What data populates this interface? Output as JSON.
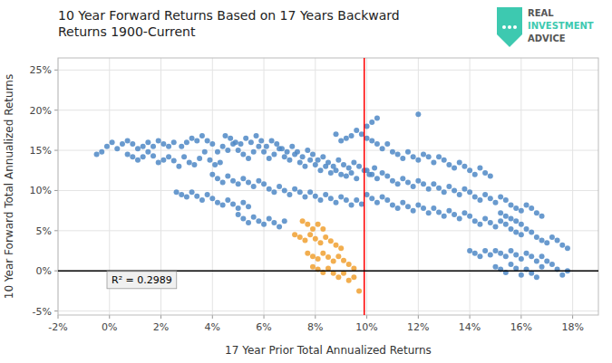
{
  "chart_data": {
    "type": "scatter",
    "title": "10 Year Forward Returns Based on 17 Years Backward\nReturns 1900-Current",
    "x_label": "17 Year Prior Total Annualized Returns",
    "y_label": "10 Year Forward Total Annualized Returns",
    "xlim": [
      -0.02,
      0.19
    ],
    "ylim": [
      -0.055,
      0.265
    ],
    "xticks": [
      {
        "value": -0.02,
        "label": "-2%"
      },
      {
        "value": 0.0,
        "label": "0%"
      },
      {
        "value": 0.02,
        "label": "2%"
      },
      {
        "value": 0.04,
        "label": "4%"
      },
      {
        "value": 0.06,
        "label": "6%"
      },
      {
        "value": 0.08,
        "label": "8%"
      },
      {
        "value": 0.1,
        "label": "10%"
      },
      {
        "value": 0.12,
        "label": "12%"
      },
      {
        "value": 0.14,
        "label": "14%"
      },
      {
        "value": 0.16,
        "label": "16%"
      },
      {
        "value": 0.18,
        "label": "18%"
      }
    ],
    "yticks": [
      {
        "value": -0.05,
        "label": "-5%"
      },
      {
        "value": 0.0,
        "label": "0%"
      },
      {
        "value": 0.05,
        "label": "5%"
      },
      {
        "value": 0.1,
        "label": "10%"
      },
      {
        "value": 0.15,
        "label": "15%"
      },
      {
        "value": 0.2,
        "label": "20%"
      },
      {
        "value": 0.25,
        "label": "25%"
      }
    ],
    "grid": true,
    "reference_lines": [
      {
        "axis": "x",
        "value": 0.099,
        "color": "red"
      },
      {
        "axis": "y",
        "value": 0.0,
        "color": "black"
      }
    ],
    "annotations": [
      {
        "text": "R² = 0.2989"
      }
    ],
    "logo_text": [
      "REAL",
      "INVESTMENT",
      "ADVICE"
    ],
    "logo_color": "#3dc9b0",
    "series": [
      {
        "color": "#4f88c6",
        "x": [
          -0.005,
          -0.003,
          -0.001,
          0.001,
          0.003,
          0.005,
          0.007,
          0.009,
          0.011,
          0.013,
          0.015,
          0.017,
          0.019,
          0.021,
          0.023,
          0.025,
          0.027,
          0.029,
          0.031,
          0.033,
          0.035,
          0.037,
          0.039,
          0.041,
          0.043,
          0.028,
          0.03,
          0.032,
          0.034,
          0.036,
          0.038,
          0.04,
          0.042,
          0.044,
          0.046,
          0.048,
          0.05,
          0.052,
          0.054,
          0.056,
          0.058,
          0.06,
          0.062,
          0.064,
          0.066,
          0.068,
          0.07,
          0.072,
          0.074,
          0.076,
          0.078,
          0.08,
          0.082,
          0.084,
          0.086,
          0.088,
          0.09,
          0.092,
          0.094,
          0.096,
          0.045,
          0.047,
          0.049,
          0.051,
          0.053,
          0.055,
          0.057,
          0.059,
          0.061,
          0.063,
          0.065,
          0.067,
          0.069,
          0.071,
          0.073,
          0.075,
          0.077,
          0.079,
          0.081,
          0.083,
          0.085,
          0.087,
          0.089,
          0.091,
          0.093,
          0.095,
          0.097,
          0.099,
          0.101,
          0.103,
          0.04,
          0.042,
          0.044,
          0.046,
          0.048,
          0.05,
          0.052,
          0.054,
          0.056,
          0.058,
          0.06,
          0.062,
          0.064,
          0.066,
          0.068,
          0.07,
          0.072,
          0.074,
          0.076,
          0.078,
          0.08,
          0.082,
          0.084,
          0.086,
          0.088,
          0.09,
          0.092,
          0.094,
          0.096,
          0.098,
          0.1,
          0.102,
          0.104,
          0.106,
          0.108,
          0.11,
          0.112,
          0.114,
          0.116,
          0.118,
          0.12,
          0.122,
          0.124,
          0.126,
          0.128,
          0.13,
          0.132,
          0.134,
          0.136,
          0.138,
          0.14,
          0.142,
          0.144,
          0.146,
          0.148,
          0.1,
          0.102,
          0.104,
          0.106,
          0.108,
          0.11,
          0.112,
          0.114,
          0.116,
          0.118,
          0.12,
          0.122,
          0.124,
          0.126,
          0.128,
          0.13,
          0.132,
          0.134,
          0.136,
          0.138,
          0.14,
          0.142,
          0.144,
          0.146,
          0.148,
          0.15,
          0.152,
          0.154,
          0.156,
          0.158,
          0.16,
          0.162,
          0.164,
          0.166,
          0.168,
          0.1,
          0.102,
          0.104,
          0.106,
          0.108,
          0.11,
          0.112,
          0.114,
          0.116,
          0.118,
          0.12,
          0.122,
          0.124,
          0.126,
          0.128,
          0.13,
          0.132,
          0.134,
          0.136,
          0.138,
          0.14,
          0.142,
          0.144,
          0.146,
          0.148,
          0.15,
          0.152,
          0.154,
          0.156,
          0.158,
          0.16,
          0.162,
          0.164,
          0.166,
          0.168,
          0.17,
          0.172,
          0.174,
          0.176,
          0.178,
          0.15,
          0.152,
          0.154,
          0.156,
          0.158,
          0.16,
          0.162,
          0.164,
          0.166,
          0.168,
          0.17,
          0.172,
          0.174,
          0.176,
          0.178,
          0.15,
          0.152,
          0.154,
          0.156,
          0.158,
          0.16,
          0.162,
          0.164,
          0.166,
          0.168,
          0.026,
          0.028,
          0.03,
          0.032,
          0.034,
          0.036,
          0.038,
          0.04,
          0.042,
          0.044,
          0.046,
          0.048,
          0.05,
          0.052,
          0.054,
          0.12,
          0.104,
          0.102,
          0.1,
          0.098,
          0.096,
          0.094,
          0.092,
          0.09,
          0.088,
          0.14,
          0.142,
          0.144,
          0.146,
          0.148,
          0.16,
          0.158,
          0.156,
          0.154,
          0.152,
          0.05,
          0.052,
          0.054,
          0.056,
          0.058,
          0.06,
          0.062,
          0.064,
          0.066,
          0.068,
          0.025,
          0.023,
          0.021,
          0.019,
          0.017,
          0.015,
          0.013,
          0.011,
          0.009,
          0.007
        ],
        "values": [
          0.145,
          0.148,
          0.155,
          0.16,
          0.152,
          0.158,
          0.145,
          0.142,
          0.138,
          0.142,
          0.148,
          0.143,
          0.135,
          0.138,
          0.142,
          0.137,
          0.13,
          0.142,
          0.135,
          0.132,
          0.14,
          0.148,
          0.138,
          0.132,
          0.135,
          0.155,
          0.16,
          0.165,
          0.162,
          0.168,
          0.162,
          0.158,
          0.148,
          0.155,
          0.15,
          0.158,
          0.15,
          0.145,
          0.14,
          0.148,
          0.155,
          0.148,
          0.14,
          0.145,
          0.152,
          0.142,
          0.138,
          0.145,
          0.135,
          0.13,
          0.138,
          0.132,
          0.125,
          0.13,
          0.122,
          0.125,
          0.12,
          0.118,
          0.122,
          0.115,
          0.168,
          0.165,
          0.16,
          0.158,
          0.165,
          0.16,
          0.168,
          0.162,
          0.155,
          0.162,
          0.158,
          0.152,
          0.148,
          0.155,
          0.148,
          0.142,
          0.15,
          0.145,
          0.138,
          0.142,
          0.135,
          0.13,
          0.138,
          0.132,
          0.128,
          0.135,
          0.13,
          0.125,
          0.12,
          0.128,
          0.12,
          0.115,
          0.11,
          0.118,
          0.112,
          0.108,
          0.115,
          0.11,
          0.105,
          0.112,
          0.108,
          0.102,
          0.098,
          0.105,
          0.1,
          0.095,
          0.102,
          0.098,
          0.092,
          0.098,
          0.093,
          0.088,
          0.095,
          0.09,
          0.085,
          0.092,
          0.088,
          0.082,
          0.088,
          0.083,
          0.165,
          0.162,
          0.158,
          0.152,
          0.158,
          0.148,
          0.145,
          0.14,
          0.148,
          0.142,
          0.138,
          0.145,
          0.142,
          0.135,
          0.142,
          0.138,
          0.132,
          0.128,
          0.135,
          0.13,
          0.125,
          0.12,
          0.128,
          0.122,
          0.118,
          0.125,
          0.12,
          0.115,
          0.122,
          0.118,
          0.112,
          0.108,
          0.115,
          0.11,
          0.105,
          0.112,
          0.108,
          0.102,
          0.108,
          0.103,
          0.098,
          0.105,
          0.1,
          0.095,
          0.102,
          0.098,
          0.092,
          0.088,
          0.095,
          0.09,
          0.085,
          0.092,
          0.088,
          0.082,
          0.078,
          0.075,
          0.082,
          0.078,
          0.072,
          0.068,
          0.095,
          0.09,
          0.085,
          0.092,
          0.088,
          0.082,
          0.078,
          0.085,
          0.08,
          0.075,
          0.082,
          0.078,
          0.072,
          0.078,
          0.073,
          0.068,
          0.075,
          0.07,
          0.065,
          0.072,
          0.068,
          0.062,
          0.058,
          0.065,
          0.06,
          0.055,
          0.062,
          0.058,
          0.052,
          0.048,
          0.045,
          0.052,
          0.048,
          0.042,
          0.038,
          0.035,
          0.042,
          0.038,
          0.032,
          0.028,
          0.005,
          0.002,
          -0.002,
          0.008,
          0.003,
          -0.005,
          0.002,
          -0.003,
          -0.008,
          0.005,
          0.012,
          0.008,
          0.002,
          -0.005,
          0.0,
          0.025,
          0.022,
          0.018,
          0.025,
          0.02,
          0.015,
          0.022,
          0.018,
          0.012,
          0.018,
          0.098,
          0.095,
          0.092,
          0.098,
          0.093,
          0.088,
          0.095,
          0.09,
          0.085,
          0.082,
          0.088,
          0.083,
          0.078,
          0.085,
          0.08,
          0.195,
          0.19,
          0.185,
          0.18,
          0.17,
          0.175,
          0.168,
          0.165,
          0.162,
          0.17,
          0.025,
          0.022,
          0.018,
          0.025,
          0.02,
          0.058,
          0.062,
          0.065,
          0.068,
          0.072,
          0.07,
          0.065,
          0.06,
          0.067,
          0.062,
          0.058,
          0.065,
          0.06,
          0.055,
          0.062,
          0.16,
          0.155,
          0.158,
          0.162,
          0.155,
          0.16,
          0.155,
          0.152,
          0.158,
          0.162
        ]
      },
      {
        "color": "#f0a030",
        "x": [
          0.072,
          0.074,
          0.076,
          0.078,
          0.08,
          0.082,
          0.084,
          0.086,
          0.088,
          0.09,
          0.077,
          0.079,
          0.081,
          0.083,
          0.085,
          0.087,
          0.089,
          0.091,
          0.093,
          0.095,
          0.079,
          0.081,
          0.083,
          0.085,
          0.087,
          0.089,
          0.091,
          0.093,
          0.095,
          0.097,
          0.075,
          0.077,
          0.079,
          0.081,
          0.083
        ],
        "values": [
          0.045,
          0.042,
          0.038,
          0.045,
          0.04,
          0.035,
          0.042,
          0.037,
          0.032,
          0.028,
          0.022,
          0.018,
          0.015,
          0.022,
          0.017,
          0.012,
          0.018,
          0.013,
          0.008,
          0.003,
          0.005,
          0.002,
          -0.002,
          0.003,
          -0.003,
          -0.008,
          -0.003,
          -0.012,
          -0.008,
          -0.025,
          0.062,
          0.058,
          0.052,
          0.058,
          0.052
        ]
      }
    ]
  }
}
